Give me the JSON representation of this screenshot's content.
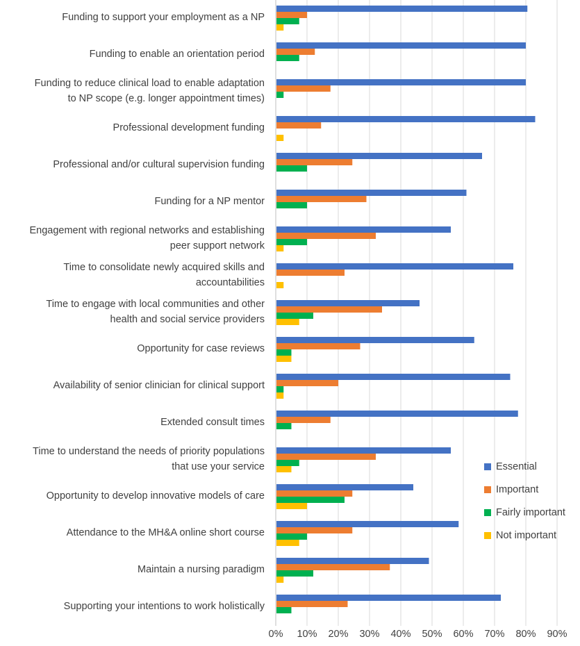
{
  "chart_data": {
    "type": "bar",
    "orientation": "horizontal",
    "categories": [
      [
        "Funding to support your employment as a NP"
      ],
      [
        "Funding to enable an orientation period"
      ],
      [
        "Funding to reduce clinical load to enable adaptation",
        "to NP scope (e.g. longer appointment times)"
      ],
      [
        "Professional development funding"
      ],
      [
        "Professional and/or cultural supervision funding"
      ],
      [
        "Funding for a NP mentor"
      ],
      [
        "Engagement with regional networks and establishing",
        "peer support network"
      ],
      [
        "Time to consolidate newly acquired skills and",
        "accountabilities"
      ],
      [
        "Time to engage with local communities and other",
        "health and social service providers"
      ],
      [
        "Opportunity for case reviews"
      ],
      [
        "Availability of senior clinician for clinical support"
      ],
      [
        "Extended consult times"
      ],
      [
        "Time to understand the needs of priority populations",
        "that use your service"
      ],
      [
        "Opportunity to develop innovative models of care"
      ],
      [
        "Attendance to the MH&A online short course"
      ],
      [
        "Maintain a nursing paradigm"
      ],
      [
        "Supporting your intentions to work holistically"
      ]
    ],
    "series": [
      {
        "name": "Essential",
        "color": "#4472C4",
        "values": [
          80.5,
          80,
          80,
          83,
          66,
          61,
          56,
          76,
          46,
          63.5,
          75,
          77.5,
          56,
          44,
          58.5,
          49,
          72
        ]
      },
      {
        "name": "Important",
        "color": "#ED7D31",
        "values": [
          10,
          12.5,
          17.5,
          14.5,
          24.5,
          29,
          32,
          22,
          34,
          27,
          20,
          17.5,
          32,
          24.5,
          24.5,
          36.5,
          23
        ]
      },
      {
        "name": "Fairly important",
        "color": "#00B050",
        "values": [
          7.5,
          7.5,
          2.5,
          0,
          10,
          10,
          10,
          0,
          12,
          5,
          2.5,
          5,
          7.5,
          22,
          10,
          12,
          5
        ]
      },
      {
        "name": "Not important",
        "color": "#FFC000",
        "values": [
          2.5,
          0,
          0,
          2.5,
          0,
          0,
          2.5,
          2.5,
          7.5,
          5,
          2.5,
          0,
          5,
          10,
          7.5,
          2.5,
          0
        ]
      }
    ],
    "xticks": [
      "0%",
      "10%",
      "20%",
      "30%",
      "40%",
      "50%",
      "60%",
      "70%",
      "80%",
      "90%"
    ],
    "xlim": [
      0,
      90
    ],
    "xlabel": "",
    "ylabel": "",
    "title": "",
    "grid": "vertical",
    "legend_position": "right"
  }
}
